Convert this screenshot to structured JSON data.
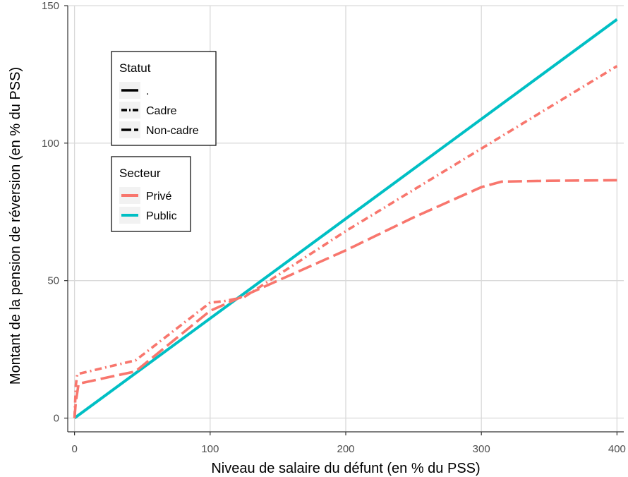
{
  "chart_data": {
    "type": "line",
    "xlabel": "Niveau de salaire du défunt (en % du PSS)",
    "ylabel": "Montant de la pension de réversion (en % du PSS)",
    "xlim": [
      -5,
      405
    ],
    "ylim": [
      -5,
      150
    ],
    "x_ticks": [
      0,
      100,
      200,
      300,
      400
    ],
    "x_tick_labels": [
      "0",
      "100",
      "200",
      "300",
      "400"
    ],
    "y_ticks": [
      0,
      50,
      100,
      150
    ],
    "y_tick_labels": [
      "0",
      "50",
      "100",
      "150"
    ],
    "grid": true,
    "legend": {
      "position": "top-left",
      "groups": [
        {
          "title": "Statut",
          "items": [
            {
              "label": ".",
              "linetype": "solid"
            },
            {
              "label": "Cadre",
              "linetype": "dotdash"
            },
            {
              "label": "Non-cadre",
              "linetype": "longdash"
            }
          ]
        },
        {
          "title": "Secteur",
          "items": [
            {
              "label": "Privé",
              "color": "#F8766D"
            },
            {
              "label": "Public",
              "color": "#00BFC4"
            }
          ]
        }
      ]
    },
    "series": [
      {
        "secteur": "Public",
        "statut": ".",
        "color": "#00BFC4",
        "linetype": "solid",
        "x": [
          0,
          400
        ],
        "y": [
          0,
          145
        ]
      },
      {
        "secteur": "Privé",
        "statut": "Cadre",
        "color": "#F8766D",
        "linetype": "dotdash",
        "x": [
          0,
          1,
          2,
          45,
          100,
          110,
          125,
          150,
          200,
          250,
          300,
          400
        ],
        "y": [
          0,
          12,
          16,
          21,
          42,
          42.5,
          44,
          52,
          68,
          83,
          98,
          128
        ]
      },
      {
        "secteur": "Privé",
        "statut": "Non-cadre",
        "color": "#F8766D",
        "linetype": "longdash",
        "x": [
          0,
          1,
          3,
          45,
          100,
          125,
          150,
          200,
          250,
          300,
          315,
          350,
          400
        ],
        "y": [
          0,
          6,
          12.5,
          17,
          39,
          44.5,
          50,
          61,
          73,
          84,
          86,
          86.3,
          86.5
        ]
      }
    ]
  }
}
